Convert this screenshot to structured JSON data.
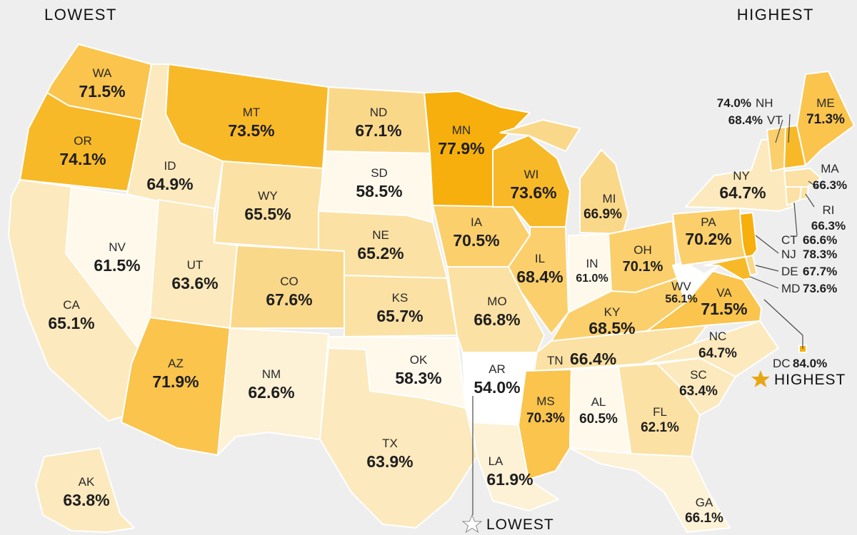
{
  "legend": {
    "low": "LOWEST",
    "high": "HIGHEST"
  },
  "colors": {
    "background": "#eeeeee",
    "bins": {
      "b54": "#ffffff",
      "b58": "#fff9ec",
      "b61": "#fdf1d6",
      "b63": "#fce9bd",
      "b65": "#fbe1a3",
      "b67": "#fad88a",
      "b69": "#fbcf6b",
      "b71": "#fac44d",
      "b73": "#f8b928",
      "b77": "#f6af0c"
    },
    "star_high": "#e7a614",
    "star_low": "#ffffff"
  },
  "markers": {
    "highest": "HIGHEST",
    "lowest": "LOWEST"
  },
  "states": [
    {
      "id": "WA",
      "abbr": "WA",
      "value": "71.5%",
      "bin": "b71"
    },
    {
      "id": "OR",
      "abbr": "OR",
      "value": "74.1%",
      "bin": "b73"
    },
    {
      "id": "CA",
      "abbr": "CA",
      "value": "65.1%",
      "bin": "b63"
    },
    {
      "id": "NV",
      "abbr": "NV",
      "value": "61.5%",
      "bin": "b58"
    },
    {
      "id": "ID",
      "abbr": "ID",
      "value": "64.9%",
      "bin": "b63"
    },
    {
      "id": "MT",
      "abbr": "MT",
      "value": "73.5%",
      "bin": "b73"
    },
    {
      "id": "WY",
      "abbr": "WY",
      "value": "65.5%",
      "bin": "b65"
    },
    {
      "id": "UT",
      "abbr": "UT",
      "value": "63.6%",
      "bin": "b63"
    },
    {
      "id": "AZ",
      "abbr": "AZ",
      "value": "71.9%",
      "bin": "b71"
    },
    {
      "id": "CO",
      "abbr": "CO",
      "value": "67.6%",
      "bin": "b67"
    },
    {
      "id": "NM",
      "abbr": "NM",
      "value": "62.6%",
      "bin": "b61"
    },
    {
      "id": "ND",
      "abbr": "ND",
      "value": "67.1%",
      "bin": "b67"
    },
    {
      "id": "SD",
      "abbr": "SD",
      "value": "58.5%",
      "bin": "b58"
    },
    {
      "id": "NE",
      "abbr": "NE",
      "value": "65.2%",
      "bin": "b65"
    },
    {
      "id": "KS",
      "abbr": "KS",
      "value": "65.7%",
      "bin": "b65"
    },
    {
      "id": "OK",
      "abbr": "OK",
      "value": "58.3%",
      "bin": "b58"
    },
    {
      "id": "TX",
      "abbr": "TX",
      "value": "63.9%",
      "bin": "b63"
    },
    {
      "id": "MN",
      "abbr": "MN",
      "value": "77.9%",
      "bin": "b77"
    },
    {
      "id": "IA",
      "abbr": "IA",
      "value": "70.5%",
      "bin": "b69"
    },
    {
      "id": "MO",
      "abbr": "MO",
      "value": "66.8%",
      "bin": "b65"
    },
    {
      "id": "AR",
      "abbr": "AR",
      "value": "54.0%",
      "bin": "b54"
    },
    {
      "id": "LA",
      "abbr": "LA",
      "value": "61.9%",
      "bin": "b61"
    },
    {
      "id": "WI",
      "abbr": "WI",
      "value": "73.6%",
      "bin": "b73"
    },
    {
      "id": "IL",
      "abbr": "IL",
      "value": "68.4%",
      "bin": "b69"
    },
    {
      "id": "MI",
      "abbr": "MI",
      "value": "66.9%",
      "bin": "b67"
    },
    {
      "id": "IN",
      "abbr": "IN",
      "value": "61.0%",
      "bin": "b58"
    },
    {
      "id": "OH",
      "abbr": "OH",
      "value": "70.1%",
      "bin": "b69"
    },
    {
      "id": "KY",
      "abbr": "KY",
      "value": "68.5%",
      "bin": "b69"
    },
    {
      "id": "TN",
      "abbr": "TN",
      "value": "66.4%",
      "bin": "b65"
    },
    {
      "id": "MS",
      "abbr": "MS",
      "value": "70.3%",
      "bin": "b71"
    },
    {
      "id": "AL",
      "abbr": "AL",
      "value": "60.5%",
      "bin": "b58"
    },
    {
      "id": "GA",
      "abbr": "GA",
      "value": "66.1%",
      "bin": "b65"
    },
    {
      "id": "FL",
      "abbr": "FL",
      "value": "62.1%",
      "bin": "b61"
    },
    {
      "id": "SC",
      "abbr": "SC",
      "value": "63.4%",
      "bin": "b63"
    },
    {
      "id": "NC",
      "abbr": "NC",
      "value": "64.7%",
      "bin": "b63"
    },
    {
      "id": "VA",
      "abbr": "VA",
      "value": "71.5%",
      "bin": "b71"
    },
    {
      "id": "WV",
      "abbr": "WV",
      "value": "56.1%",
      "bin": "b54"
    },
    {
      "id": "PA",
      "abbr": "PA",
      "value": "70.2%",
      "bin": "b69"
    },
    {
      "id": "NY",
      "abbr": "NY",
      "value": "64.7%",
      "bin": "b63"
    },
    {
      "id": "ME",
      "abbr": "ME",
      "value": "71.3%",
      "bin": "b71"
    },
    {
      "id": "AK",
      "abbr": "AK",
      "value": "63.8%",
      "bin": "b63"
    }
  ],
  "callouts": [
    {
      "id": "NH",
      "abbr": "NH",
      "value": "74.0%",
      "bin": "b73"
    },
    {
      "id": "VT",
      "abbr": "VT",
      "value": "68.4%",
      "bin": "b69"
    },
    {
      "id": "MA",
      "abbr": "MA",
      "value": "66.3%",
      "bin": "b65"
    },
    {
      "id": "RI",
      "abbr": "RI",
      "value": "66.3%",
      "bin": "b65"
    },
    {
      "id": "CT",
      "abbr": "CT",
      "value": "66.6%",
      "bin": "b65"
    },
    {
      "id": "NJ",
      "abbr": "NJ",
      "value": "78.3%",
      "bin": "b77"
    },
    {
      "id": "DE",
      "abbr": "DE",
      "value": "67.7%",
      "bin": "b67"
    },
    {
      "id": "MD",
      "abbr": "MD",
      "value": "73.6%",
      "bin": "b73"
    },
    {
      "id": "DC",
      "abbr": "DC",
      "value": "84.0%",
      "bin": "b77"
    }
  ]
}
